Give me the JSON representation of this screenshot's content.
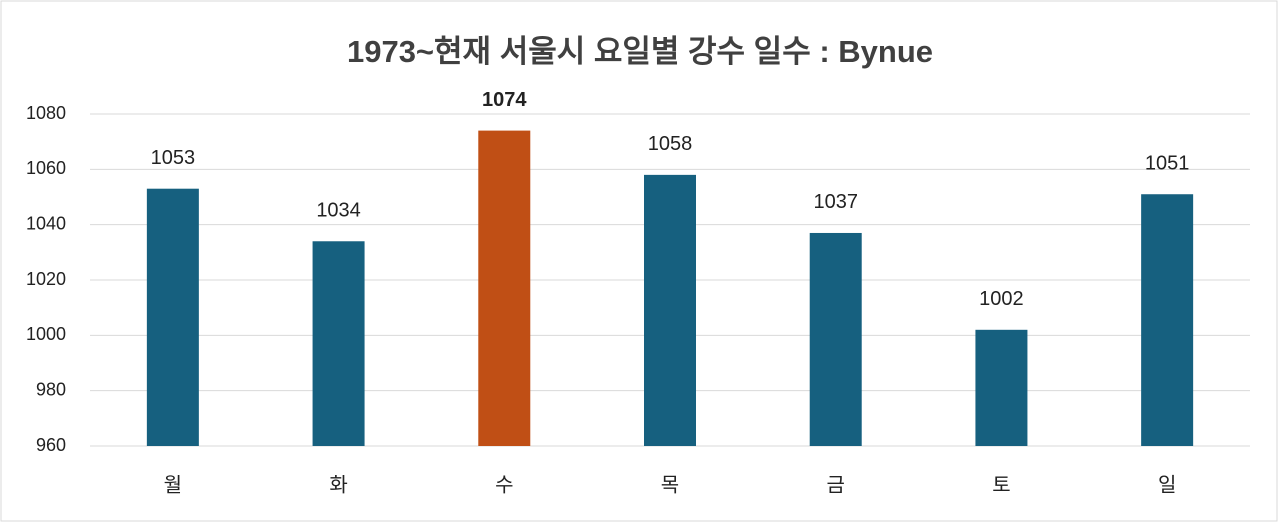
{
  "chart_data": {
    "type": "bar",
    "title": "1973~현재 서울시 요일별 강수 일수 : Bynue",
    "categories": [
      "월",
      "화",
      "수",
      "목",
      "금",
      "토",
      "일"
    ],
    "values": [
      1053,
      1034,
      1074,
      1058,
      1037,
      1002,
      1051
    ],
    "colors": [
      "#16607f",
      "#16607f",
      "#c04f15",
      "#16607f",
      "#16607f",
      "#16607f",
      "#16607f"
    ],
    "ylim": [
      960,
      1080
    ],
    "yticks": [
      960,
      980,
      1000,
      1020,
      1040,
      1060,
      1080
    ],
    "grid": true
  }
}
